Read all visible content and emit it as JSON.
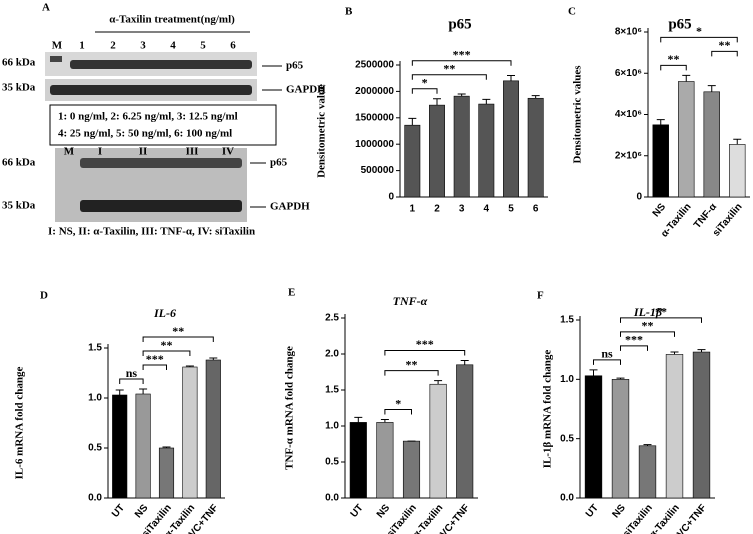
{
  "blot": {
    "panel": "A",
    "treatment": "α-Taxilin treatment(ng/ml)",
    "top_lanes": [
      "M",
      "1",
      "2",
      "3",
      "4",
      "5",
      "6"
    ],
    "top_markers": [
      "66 kDa",
      "35 kDa"
    ],
    "top_targets": [
      "p65",
      "GAPDH"
    ],
    "key_lines": [
      "1: 0 ng/ml, 2: 6.25 ng/ml, 3: 12.5 ng/ml",
      "4: 25 ng/ml, 5: 50 ng/ml, 6: 100 ng/ml"
    ],
    "bottom_lanes": [
      "M",
      "I",
      "II",
      "III",
      "IV"
    ],
    "bottom_markers": [
      "66 kDa",
      "35 kDa"
    ],
    "bottom_targets": [
      "p65",
      "GAPDH"
    ],
    "caption": "I: NS, II: α-Taxilin, III: TNF-α, IV: siTaxilin"
  },
  "chart_data": [
    {
      "type": "bar",
      "panel": "B",
      "title": "p65",
      "ylabel": "Densitometric value",
      "categories": [
        "1",
        "2",
        "3",
        "4",
        "5",
        "6"
      ],
      "values": [
        1360000,
        1740000,
        1910000,
        1760000,
        2200000,
        1870000
      ],
      "errors": [
        130000,
        120000,
        40000,
        90000,
        100000,
        50000
      ],
      "colors": [
        "#555555",
        "#555555",
        "#555555",
        "#555555",
        "#555555",
        "#555555"
      ],
      "ylim": [
        0,
        2500000
      ],
      "yticks": [
        0,
        500000,
        1000000,
        1500000,
        2000000,
        2500000
      ],
      "annotations": [
        {
          "text": "*",
          "between": [
            "1",
            "2"
          ]
        },
        {
          "text": "**",
          "between": [
            "1",
            "4"
          ]
        },
        {
          "text": "***",
          "between": [
            "1",
            "5"
          ]
        }
      ]
    },
    {
      "type": "bar",
      "panel": "C",
      "title": "p65",
      "ylabel": "Densitometric values",
      "categories": [
        "NS",
        "α-Taxilin",
        "TNF-α",
        "siTaxilin"
      ],
      "values": [
        3500000,
        5600000,
        5100000,
        2550000
      ],
      "errors": [
        250000,
        300000,
        300000,
        250000
      ],
      "colors": [
        "#000000",
        "#aaaaaa",
        "#888888",
        "#dddddd"
      ],
      "ylim": [
        0,
        8000000
      ],
      "yticks": [
        0,
        {
          "value": 2000000,
          "label": "2×10⁶"
        },
        {
          "value": 4000000,
          "label": "4×10⁶"
        },
        {
          "value": 6000000,
          "label": "6×10⁶"
        },
        {
          "value": 8000000,
          "label": "8×10⁶"
        }
      ],
      "annotations": [
        {
          "text": "**",
          "between": [
            "NS",
            "α-Taxilin"
          ]
        },
        {
          "text": "**",
          "between": [
            "TNF-α",
            "siTaxilin"
          ]
        },
        {
          "text": "*",
          "between": [
            "NS",
            "siTaxilin"
          ]
        }
      ]
    },
    {
      "type": "bar",
      "panel": "D",
      "title": "IL-6",
      "ylabel": "IL-6 mRNA fold change",
      "categories": [
        "UT",
        "NS",
        "siTaxilin",
        "VC+α-Taxilin",
        "VC+TNF"
      ],
      "values": [
        1.03,
        1.04,
        0.5,
        1.31,
        1.38
      ],
      "errors": [
        0.05,
        0.05,
        0.01,
        0.01,
        0.02
      ],
      "colors": [
        "#000000",
        "#999999",
        "#777777",
        "#cccccc",
        "#666666"
      ],
      "ylim": [
        0,
        1.5
      ],
      "yticks": [
        {
          "value": 0,
          "label": "0.0"
        },
        0.5,
        {
          "value": 1,
          "label": "1.0"
        },
        1.5
      ],
      "annotations": [
        {
          "text": "ns",
          "between": [
            "UT",
            "NS"
          ]
        },
        {
          "text": "***",
          "between": [
            "NS",
            "siTaxilin"
          ]
        },
        {
          "text": "**",
          "between": [
            "NS",
            "VC+α-Taxilin"
          ]
        },
        {
          "text": "**",
          "between": [
            "NS",
            "VC+TNF"
          ]
        }
      ]
    },
    {
      "type": "bar",
      "panel": "E",
      "title": "TNF-α",
      "ylabel": "TNF-α mRNA fold change",
      "categories": [
        "UT",
        "NS",
        "siTaxilin",
        "VC+α-Taxilin",
        "VC+TNF"
      ],
      "values": [
        1.05,
        1.05,
        0.79,
        1.58,
        1.85
      ],
      "errors": [
        0.07,
        0.04,
        0,
        0.05,
        0.06
      ],
      "colors": [
        "#000000",
        "#999999",
        "#777777",
        "#cccccc",
        "#666666"
      ],
      "ylim": [
        0,
        2.5
      ],
      "yticks": [
        {
          "value": 0,
          "label": "0.0"
        },
        0.5,
        {
          "value": 1,
          "label": "1.0"
        },
        1.5,
        {
          "value": 2,
          "label": "2.0"
        },
        2.5
      ],
      "annotations": [
        {
          "text": "*",
          "between": [
            "NS",
            "siTaxilin"
          ]
        },
        {
          "text": "**",
          "between": [
            "NS",
            "VC+α-Taxilin"
          ]
        },
        {
          "text": "***",
          "between": [
            "NS",
            "VC+TNF"
          ]
        }
      ]
    },
    {
      "type": "bar",
      "panel": "F",
      "title": "IL-1β",
      "ylabel": "IL-1β mRNA fold change",
      "categories": [
        "UT",
        "NS",
        "siTaxilin",
        "VC+α-Taxilin",
        "VC+TNF"
      ],
      "values": [
        1.03,
        1.0,
        0.44,
        1.21,
        1.23
      ],
      "errors": [
        0.05,
        0.01,
        0.01,
        0.02,
        0.02
      ],
      "colors": [
        "#000000",
        "#999999",
        "#777777",
        "#cccccc",
        "#666666"
      ],
      "ylim": [
        0,
        1.5
      ],
      "yticks": [
        {
          "value": 0,
          "label": "0.0"
        },
        0.5,
        {
          "value": 1,
          "label": "1.0"
        },
        1.5
      ],
      "annotations": [
        {
          "text": "ns",
          "between": [
            "UT",
            "NS"
          ]
        },
        {
          "text": "***",
          "between": [
            "NS",
            "siTaxilin"
          ]
        },
        {
          "text": "**",
          "between": [
            "NS",
            "VC+α-Taxilin"
          ]
        },
        {
          "text": "**",
          "between": [
            "NS",
            "VC+TNF"
          ]
        }
      ]
    }
  ]
}
